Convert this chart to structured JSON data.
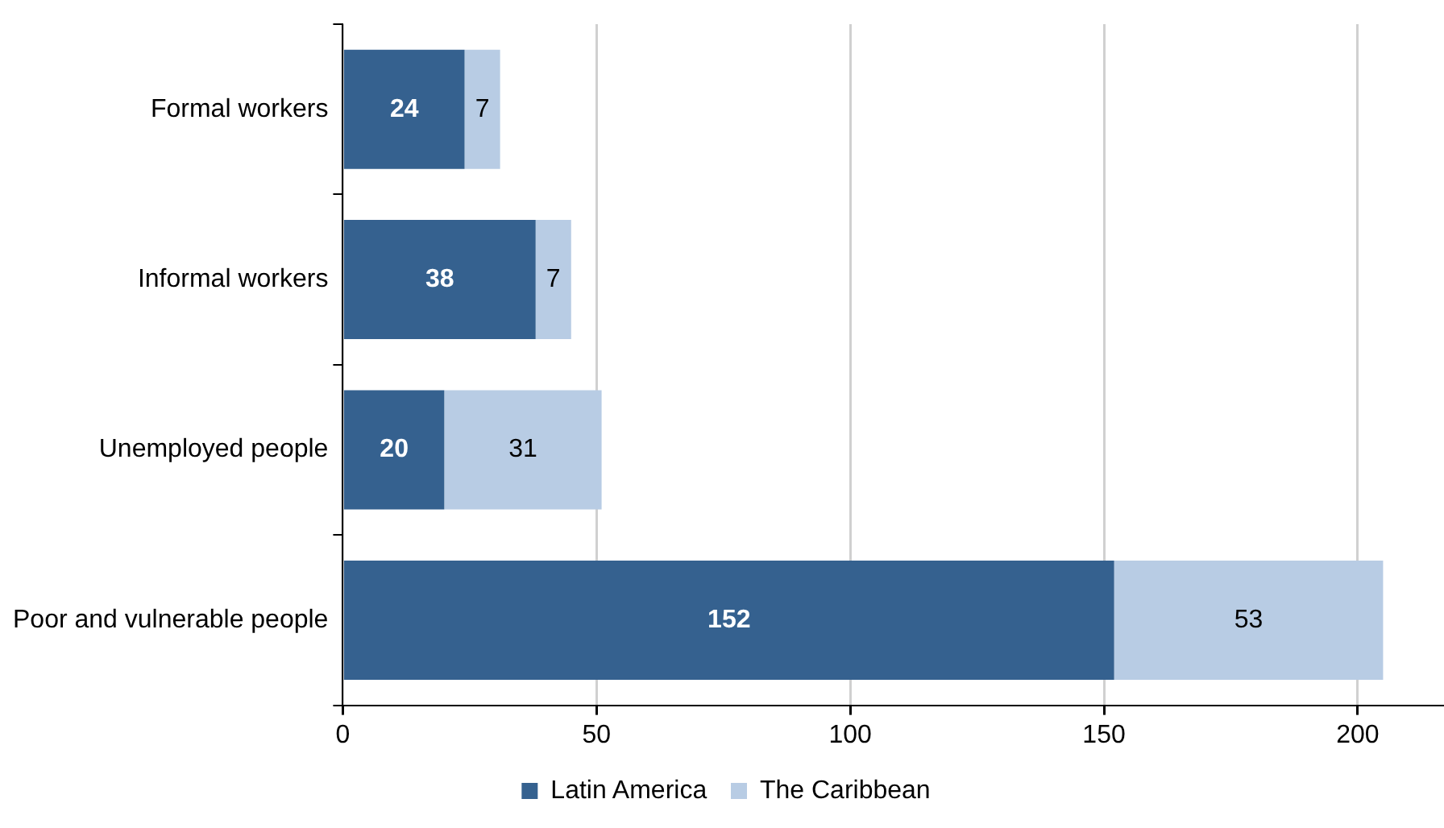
{
  "chart_data": {
    "type": "bar",
    "orientation": "horizontal",
    "stacked": true,
    "categories": [
      "Formal workers",
      "Informal workers",
      "Unemployed people",
      "Poor and vulnerable people"
    ],
    "series": [
      {
        "name": "Latin America",
        "color": "#35618f",
        "values": [
          24,
          38,
          20,
          152
        ]
      },
      {
        "name": "The Caribbean",
        "color": "#b8cce4",
        "values": [
          7,
          7,
          31,
          53
        ]
      }
    ],
    "xlim": [
      0,
      217
    ],
    "xticks": [
      0,
      50,
      100,
      150,
      200
    ],
    "grid": "x",
    "data_labels": true,
    "legend": "bottom"
  }
}
